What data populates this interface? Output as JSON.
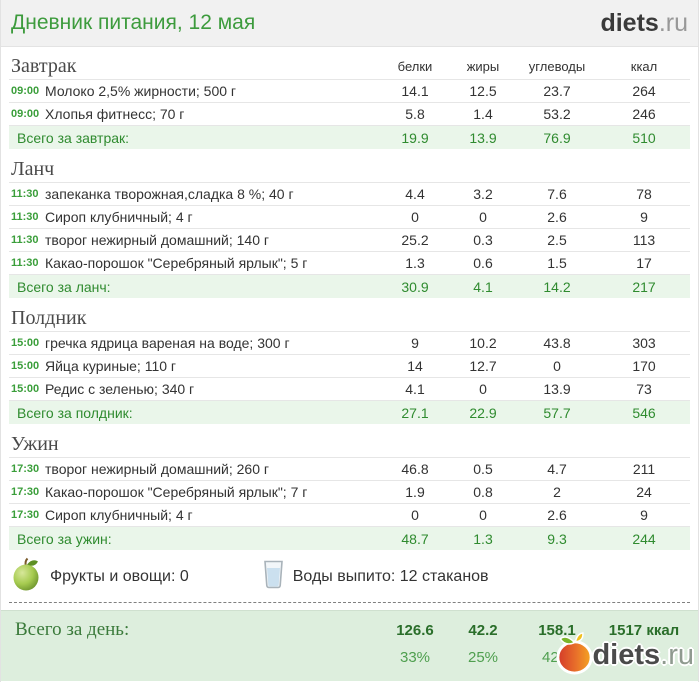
{
  "header": {
    "title": "Дневник питания, 12 мая"
  },
  "brand": {
    "name": "diets",
    "suffix": ".ru"
  },
  "table": {
    "columns": [
      "белки",
      "жиры",
      "углеводы",
      "ккал"
    ],
    "sections": [
      {
        "title": "Завтрак",
        "show_columns": true,
        "rows": [
          {
            "time": "09:00",
            "name": "Молоко 2,5% жирности; 500 г",
            "protein": "14.1",
            "fat": "12.5",
            "carbs": "23.7",
            "kcal": "264"
          },
          {
            "time": "09:00",
            "name": "Хлопья фитнесс; 70 г",
            "protein": "5.8",
            "fat": "1.4",
            "carbs": "53.2",
            "kcal": "246"
          }
        ],
        "total": {
          "label": "Всего за завтрак:",
          "protein": "19.9",
          "fat": "13.9",
          "carbs": "76.9",
          "kcal": "510"
        }
      },
      {
        "title": "Ланч",
        "show_columns": false,
        "rows": [
          {
            "time": "11:30",
            "name": "запеканка творожная,сладка 8 %; 40 г",
            "protein": "4.4",
            "fat": "3.2",
            "carbs": "7.6",
            "kcal": "78"
          },
          {
            "time": "11:30",
            "name": "Сироп клубничный; 4 г",
            "protein": "0",
            "fat": "0",
            "carbs": "2.6",
            "kcal": "9"
          },
          {
            "time": "11:30",
            "name": "творог нежирный домашний; 140 г",
            "protein": "25.2",
            "fat": "0.3",
            "carbs": "2.5",
            "kcal": "113"
          },
          {
            "time": "11:30",
            "name": "Какао-порошок \"Серебряный ярлык\"; 5 г",
            "protein": "1.3",
            "fat": "0.6",
            "carbs": "1.5",
            "kcal": "17"
          }
        ],
        "total": {
          "label": "Всего за ланч:",
          "protein": "30.9",
          "fat": "4.1",
          "carbs": "14.2",
          "kcal": "217"
        }
      },
      {
        "title": "Полдник",
        "show_columns": false,
        "rows": [
          {
            "time": "15:00",
            "name": "гречка ядрица вареная на воде; 300 г",
            "protein": "9",
            "fat": "10.2",
            "carbs": "43.8",
            "kcal": "303"
          },
          {
            "time": "15:00",
            "name": "Яйца куриные; 110 г",
            "protein": "14",
            "fat": "12.7",
            "carbs": "0",
            "kcal": "170"
          },
          {
            "time": "15:00",
            "name": "Редис с зеленью; 340 г",
            "protein": "4.1",
            "fat": "0",
            "carbs": "13.9",
            "kcal": "73"
          }
        ],
        "total": {
          "label": "Всего за полдник:",
          "protein": "27.1",
          "fat": "22.9",
          "carbs": "57.7",
          "kcal": "546"
        }
      },
      {
        "title": "Ужин",
        "show_columns": false,
        "rows": [
          {
            "time": "17:30",
            "name": "творог нежирный домашний; 260 г",
            "protein": "46.8",
            "fat": "0.5",
            "carbs": "4.7",
            "kcal": "211"
          },
          {
            "time": "17:30",
            "name": "Какао-порошок \"Серебряный ярлык\"; 7 г",
            "protein": "1.9",
            "fat": "0.8",
            "carbs": "2",
            "kcal": "24"
          },
          {
            "time": "17:30",
            "name": "Сироп клубничный; 4 г",
            "protein": "0",
            "fat": "0",
            "carbs": "2.6",
            "kcal": "9"
          }
        ],
        "total": {
          "label": "Всего за ужин:",
          "protein": "48.7",
          "fat": "1.3",
          "carbs": "9.3",
          "kcal": "244"
        }
      }
    ]
  },
  "info": {
    "fruits_icon": "apple-icon",
    "fruits": "Фрукты и овощи: 0",
    "water_icon": "water-glass-icon",
    "water": "Воды выпито: 12 стаканов"
  },
  "footer": {
    "label": "Всего за день:",
    "protein": "126.6",
    "fat": "42.2",
    "carbs": "158.1",
    "kcal": "1517 ккал",
    "protein_pct": "33%",
    "fat_pct": "25%",
    "carbs_pct": "42%",
    "logo_icon": "apple-logo-icon"
  },
  "colors": {
    "accent_green": "#3d9b3d",
    "total_text": "#2f8b2f",
    "total_bg": "#eaf6ea",
    "footer_bg": "#ddeedd",
    "header_bg": "#f1f1f1"
  }
}
